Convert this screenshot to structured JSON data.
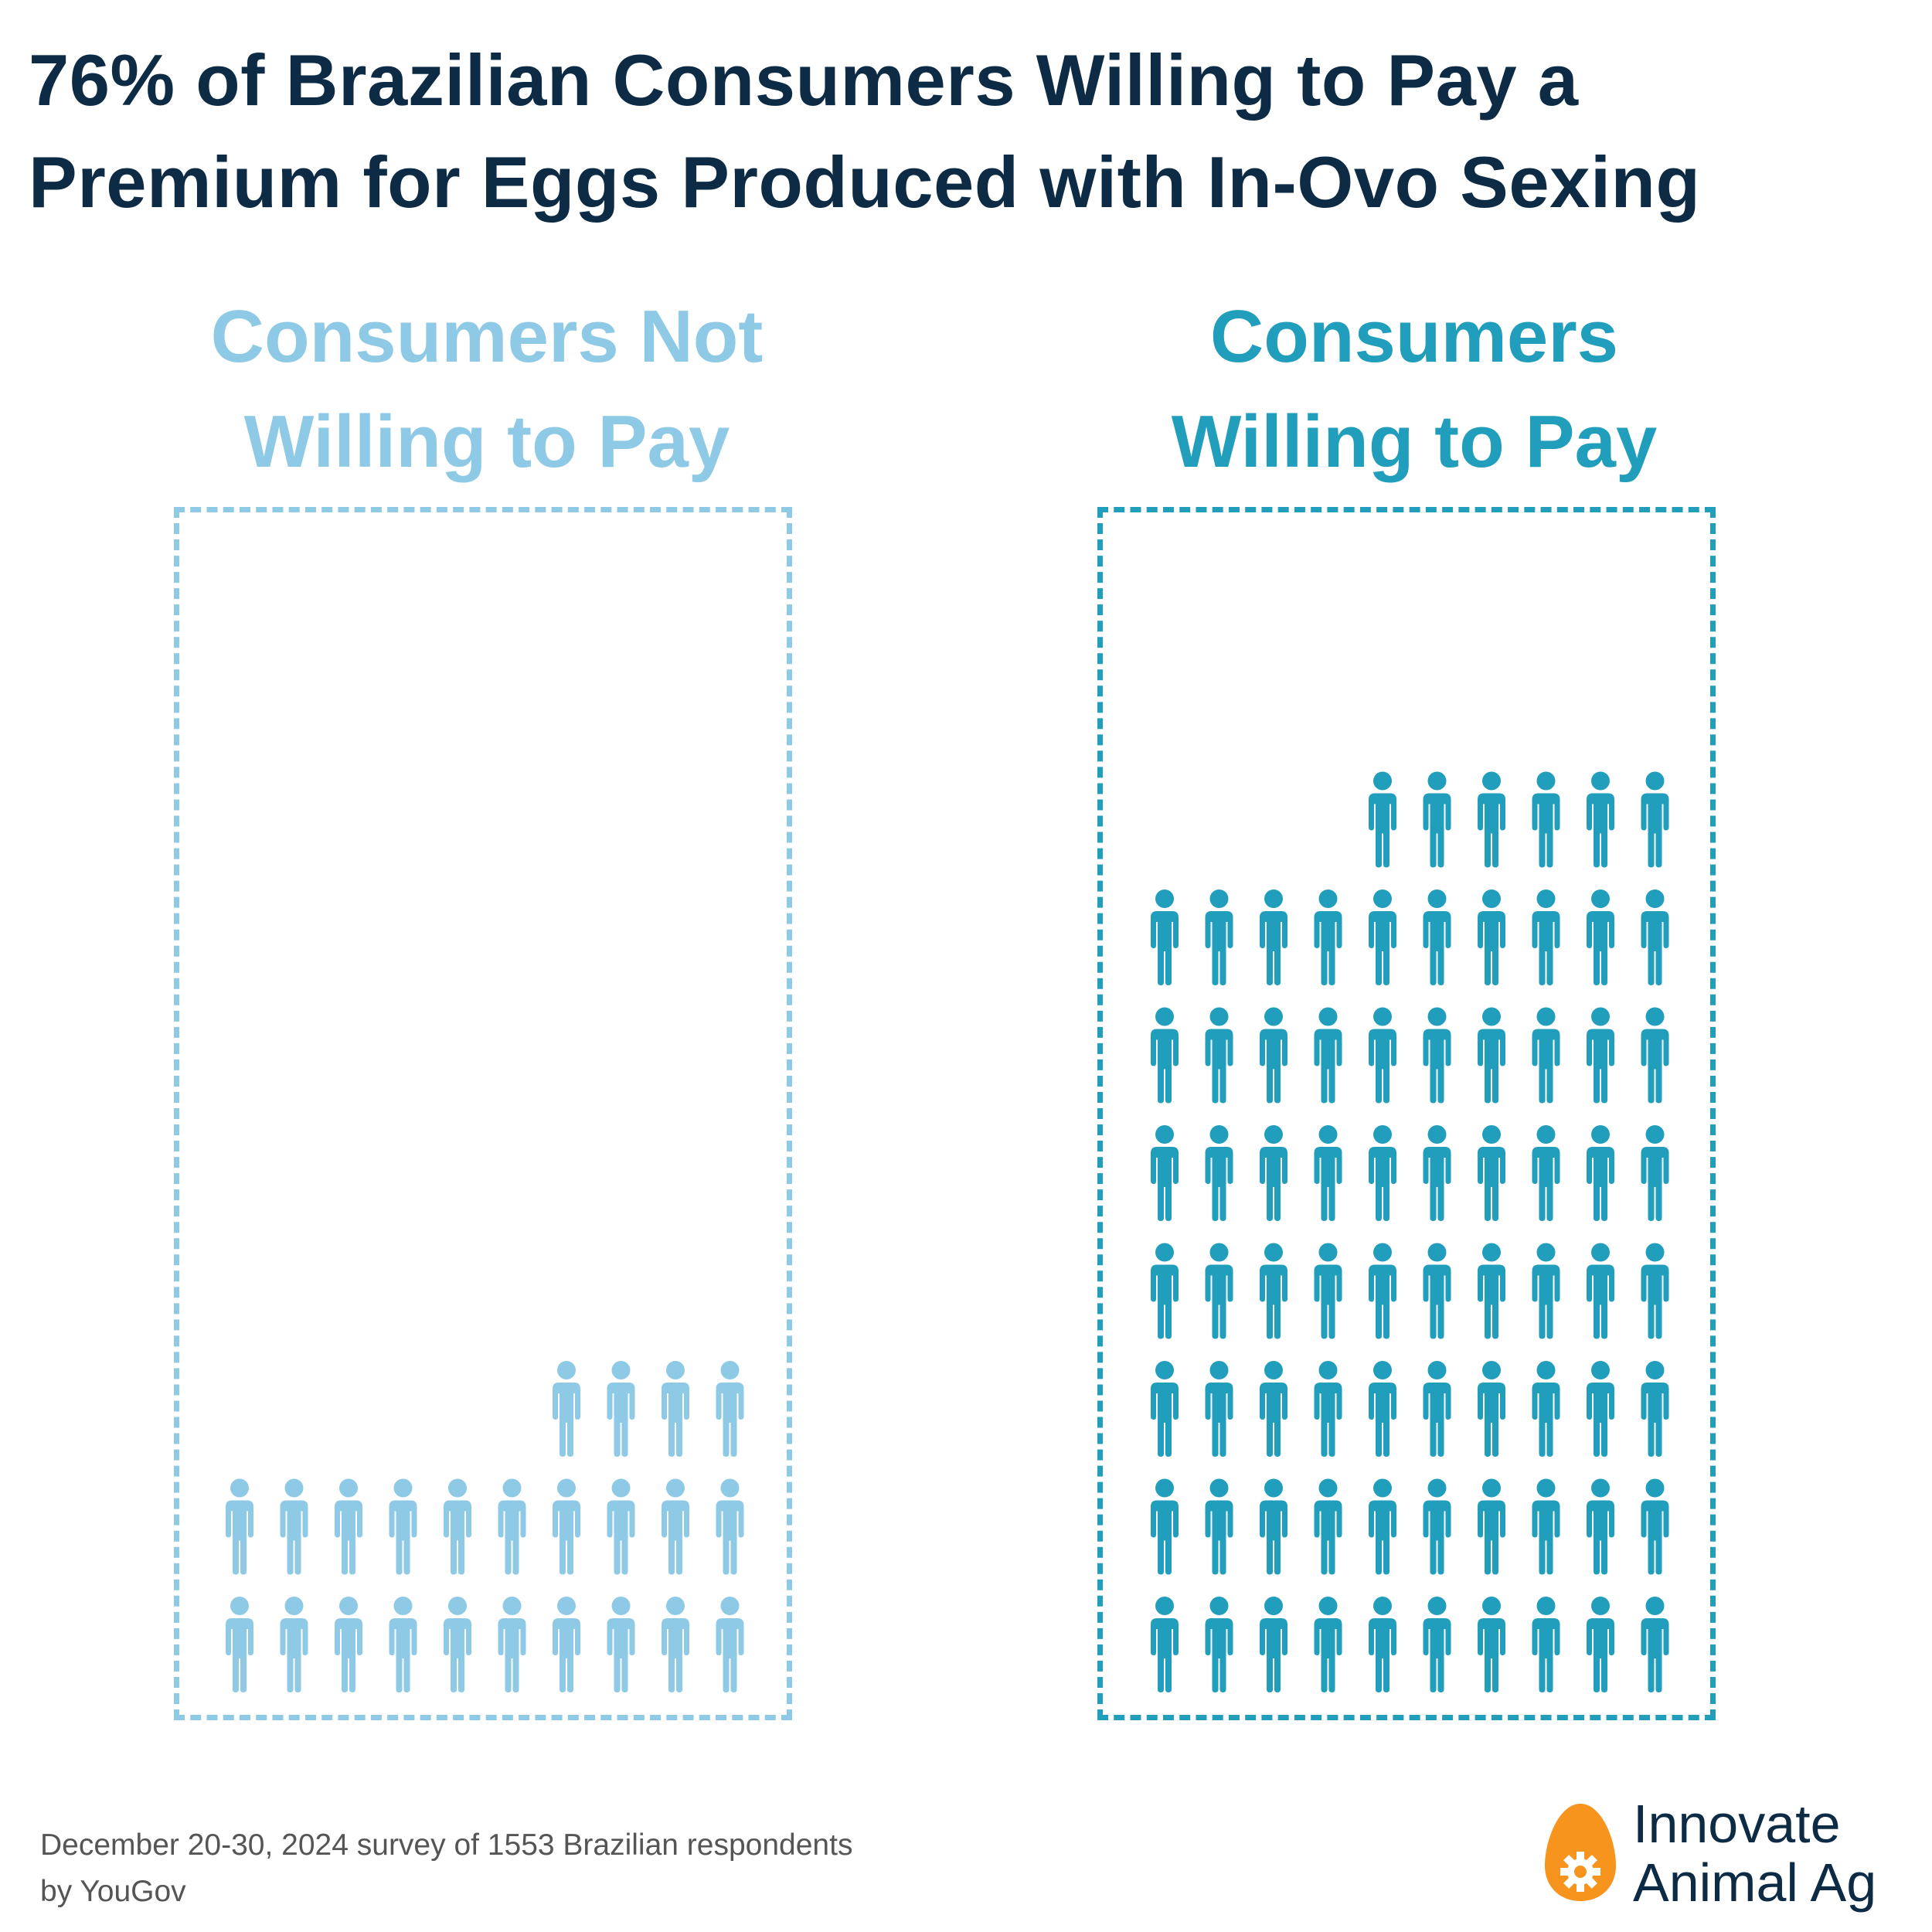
{
  "title": "76% of Brazilian Consumers Willing to Pay a Premium for Eggs Produced with In-Ovo Sexing",
  "footnote": "December 20-30, 2024 survey of 1553 Brazilian respondents by YouGov",
  "logo": {
    "line1": "Innovate",
    "line2": "Animal Ag",
    "icon": "egg-gear-icon"
  },
  "colors": {
    "title": "#0d2b45",
    "not_willing": "#8ecae6",
    "willing": "#219ebc",
    "logo_egg": "#f7941d"
  },
  "chart_data": {
    "type": "pictograph",
    "unit_icon": "person-icon",
    "series": [
      {
        "name": "Consumers Not Willing to Pay",
        "count": 24,
        "color": "#8ecae6"
      },
      {
        "name": "Consumers Willing to Pay",
        "count": 76,
        "color": "#219ebc"
      }
    ]
  }
}
